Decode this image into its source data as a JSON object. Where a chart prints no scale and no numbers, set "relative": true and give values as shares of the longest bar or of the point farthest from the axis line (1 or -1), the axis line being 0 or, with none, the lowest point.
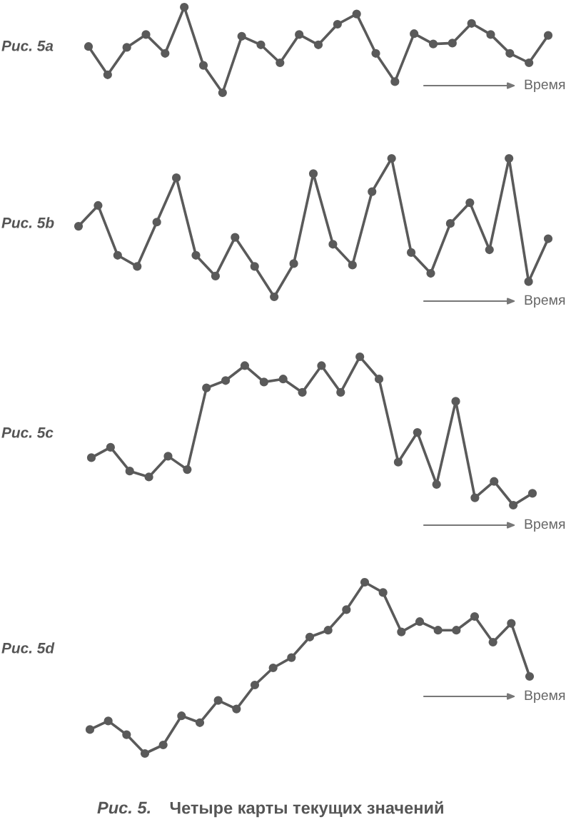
{
  "chart_data": [
    {
      "type": "line",
      "title": "Рис. 5a",
      "categories": [
        null,
        null,
        null,
        null,
        null,
        null,
        null,
        null,
        null,
        null,
        null,
        null,
        null,
        null,
        null,
        null,
        null,
        null,
        null,
        null,
        null,
        null,
        null,
        null,
        null
      ],
      "relative": true,
      "marker": "circle",
      "series": [
        {
          "color": "#5a5a5a",
          "values": [
            0.54,
            0.21,
            0.53,
            0.68,
            0.46,
            1,
            0.32,
            0,
            0.66,
            0.56,
            0.35,
            0.68,
            0.56,
            0.8,
            0.92,
            0.46,
            0.13,
            0.69,
            0.57,
            0.58,
            0.81,
            0.68,
            0.46,
            0.35,
            0.67
          ]
        }
      ],
      "annotations": [
        "Время"
      ]
    },
    {
      "type": "line",
      "title": "Рис. 5b",
      "categories": [
        null,
        null,
        null,
        null,
        null,
        null,
        null,
        null,
        null,
        null,
        null,
        null,
        null,
        null,
        null,
        null,
        null,
        null,
        null,
        null,
        null,
        null,
        null,
        null,
        null
      ],
      "relative": true,
      "marker": "circle",
      "series": [
        {
          "color": "#5a5a5a",
          "values": [
            0.51,
            0.66,
            0.3,
            0.22,
            0.54,
            0.86,
            0.3,
            0.15,
            0.43,
            0.22,
            0,
            0.24,
            0.89,
            0.38,
            0.23,
            0.76,
            1,
            0.32,
            0.17,
            0.53,
            0.68,
            0.34,
            1,
            0.11,
            0.42
          ]
        }
      ],
      "annotations": [
        "Время"
      ]
    },
    {
      "type": "line",
      "title": "Рис. 5c",
      "categories": [
        null,
        null,
        null,
        null,
        null,
        null,
        null,
        null,
        null,
        null,
        null,
        null,
        null,
        null,
        null,
        null,
        null,
        null,
        null,
        null,
        null,
        null,
        null,
        null
      ],
      "relative": true,
      "marker": "circle",
      "series": [
        {
          "color": "#5a5a5a",
          "values": [
            0.32,
            0.39,
            0.23,
            0.19,
            0.33,
            0.24,
            0.79,
            0.84,
            0.94,
            0.83,
            0.85,
            0.76,
            0.94,
            0.76,
            1,
            0.85,
            0.29,
            0.49,
            0.14,
            0.7,
            0.05,
            0.16,
            0,
            0.08
          ]
        }
      ],
      "annotations": [
        "Время"
      ]
    },
    {
      "type": "line",
      "title": "Рис. 5d",
      "categories": [
        null,
        null,
        null,
        null,
        null,
        null,
        null,
        null,
        null,
        null,
        null,
        null,
        null,
        null,
        null,
        null,
        null,
        null,
        null,
        null,
        null,
        null,
        null,
        null,
        null
      ],
      "relative": true,
      "marker": "circle",
      "series": [
        {
          "color": "#5a5a5a",
          "values": [
            0.14,
            0.19,
            0.11,
            0,
            0.05,
            0.22,
            0.18,
            0.31,
            0.26,
            0.4,
            0.5,
            0.56,
            0.68,
            0.72,
            0.84,
            1,
            0.94,
            0.71,
            0.77,
            0.72,
            0.72,
            0.8,
            0.65,
            0.76,
            0.45
          ]
        }
      ],
      "annotations": [
        "Время",
        "Рис. 5.",
        "Четыре карты текущих значений"
      ]
    }
  ]
}
